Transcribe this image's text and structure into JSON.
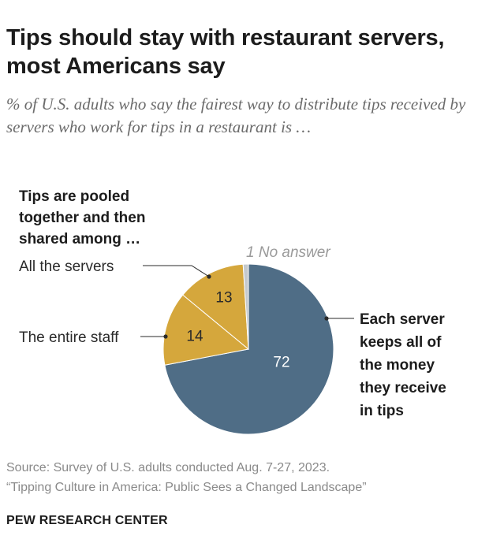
{
  "header": {
    "title": "Tips should stay with restaurant servers, most Americans say",
    "subtitle": "% of U.S. adults who say the fairest way to distribute tips received by servers who work for tips in a restaurant is …"
  },
  "chart_data": {
    "type": "pie",
    "group_heading": [
      "Tips are pooled",
      "together and then",
      "shared among …"
    ],
    "slices": [
      {
        "label_lines": [
          "Each server",
          "keeps all of",
          "the money",
          "they receive",
          "in tips"
        ],
        "value": 72,
        "color": "#4f6d86"
      },
      {
        "label_lines": [
          "The entire staff"
        ],
        "value": 14,
        "color": "#d5a73c"
      },
      {
        "label_lines": [
          "All the servers"
        ],
        "value": 13,
        "color": "#d5a73c"
      },
      {
        "label_lines": [
          "No answer"
        ],
        "value": 1,
        "color": "#c4c9cd"
      }
    ]
  },
  "footer": {
    "source": "Source: Survey of U.S. adults conducted Aug. 7-27, 2023.",
    "report": "“Tipping Culture in America: Public Sees a Changed Landscape”",
    "org": "PEW RESEARCH CENTER"
  }
}
